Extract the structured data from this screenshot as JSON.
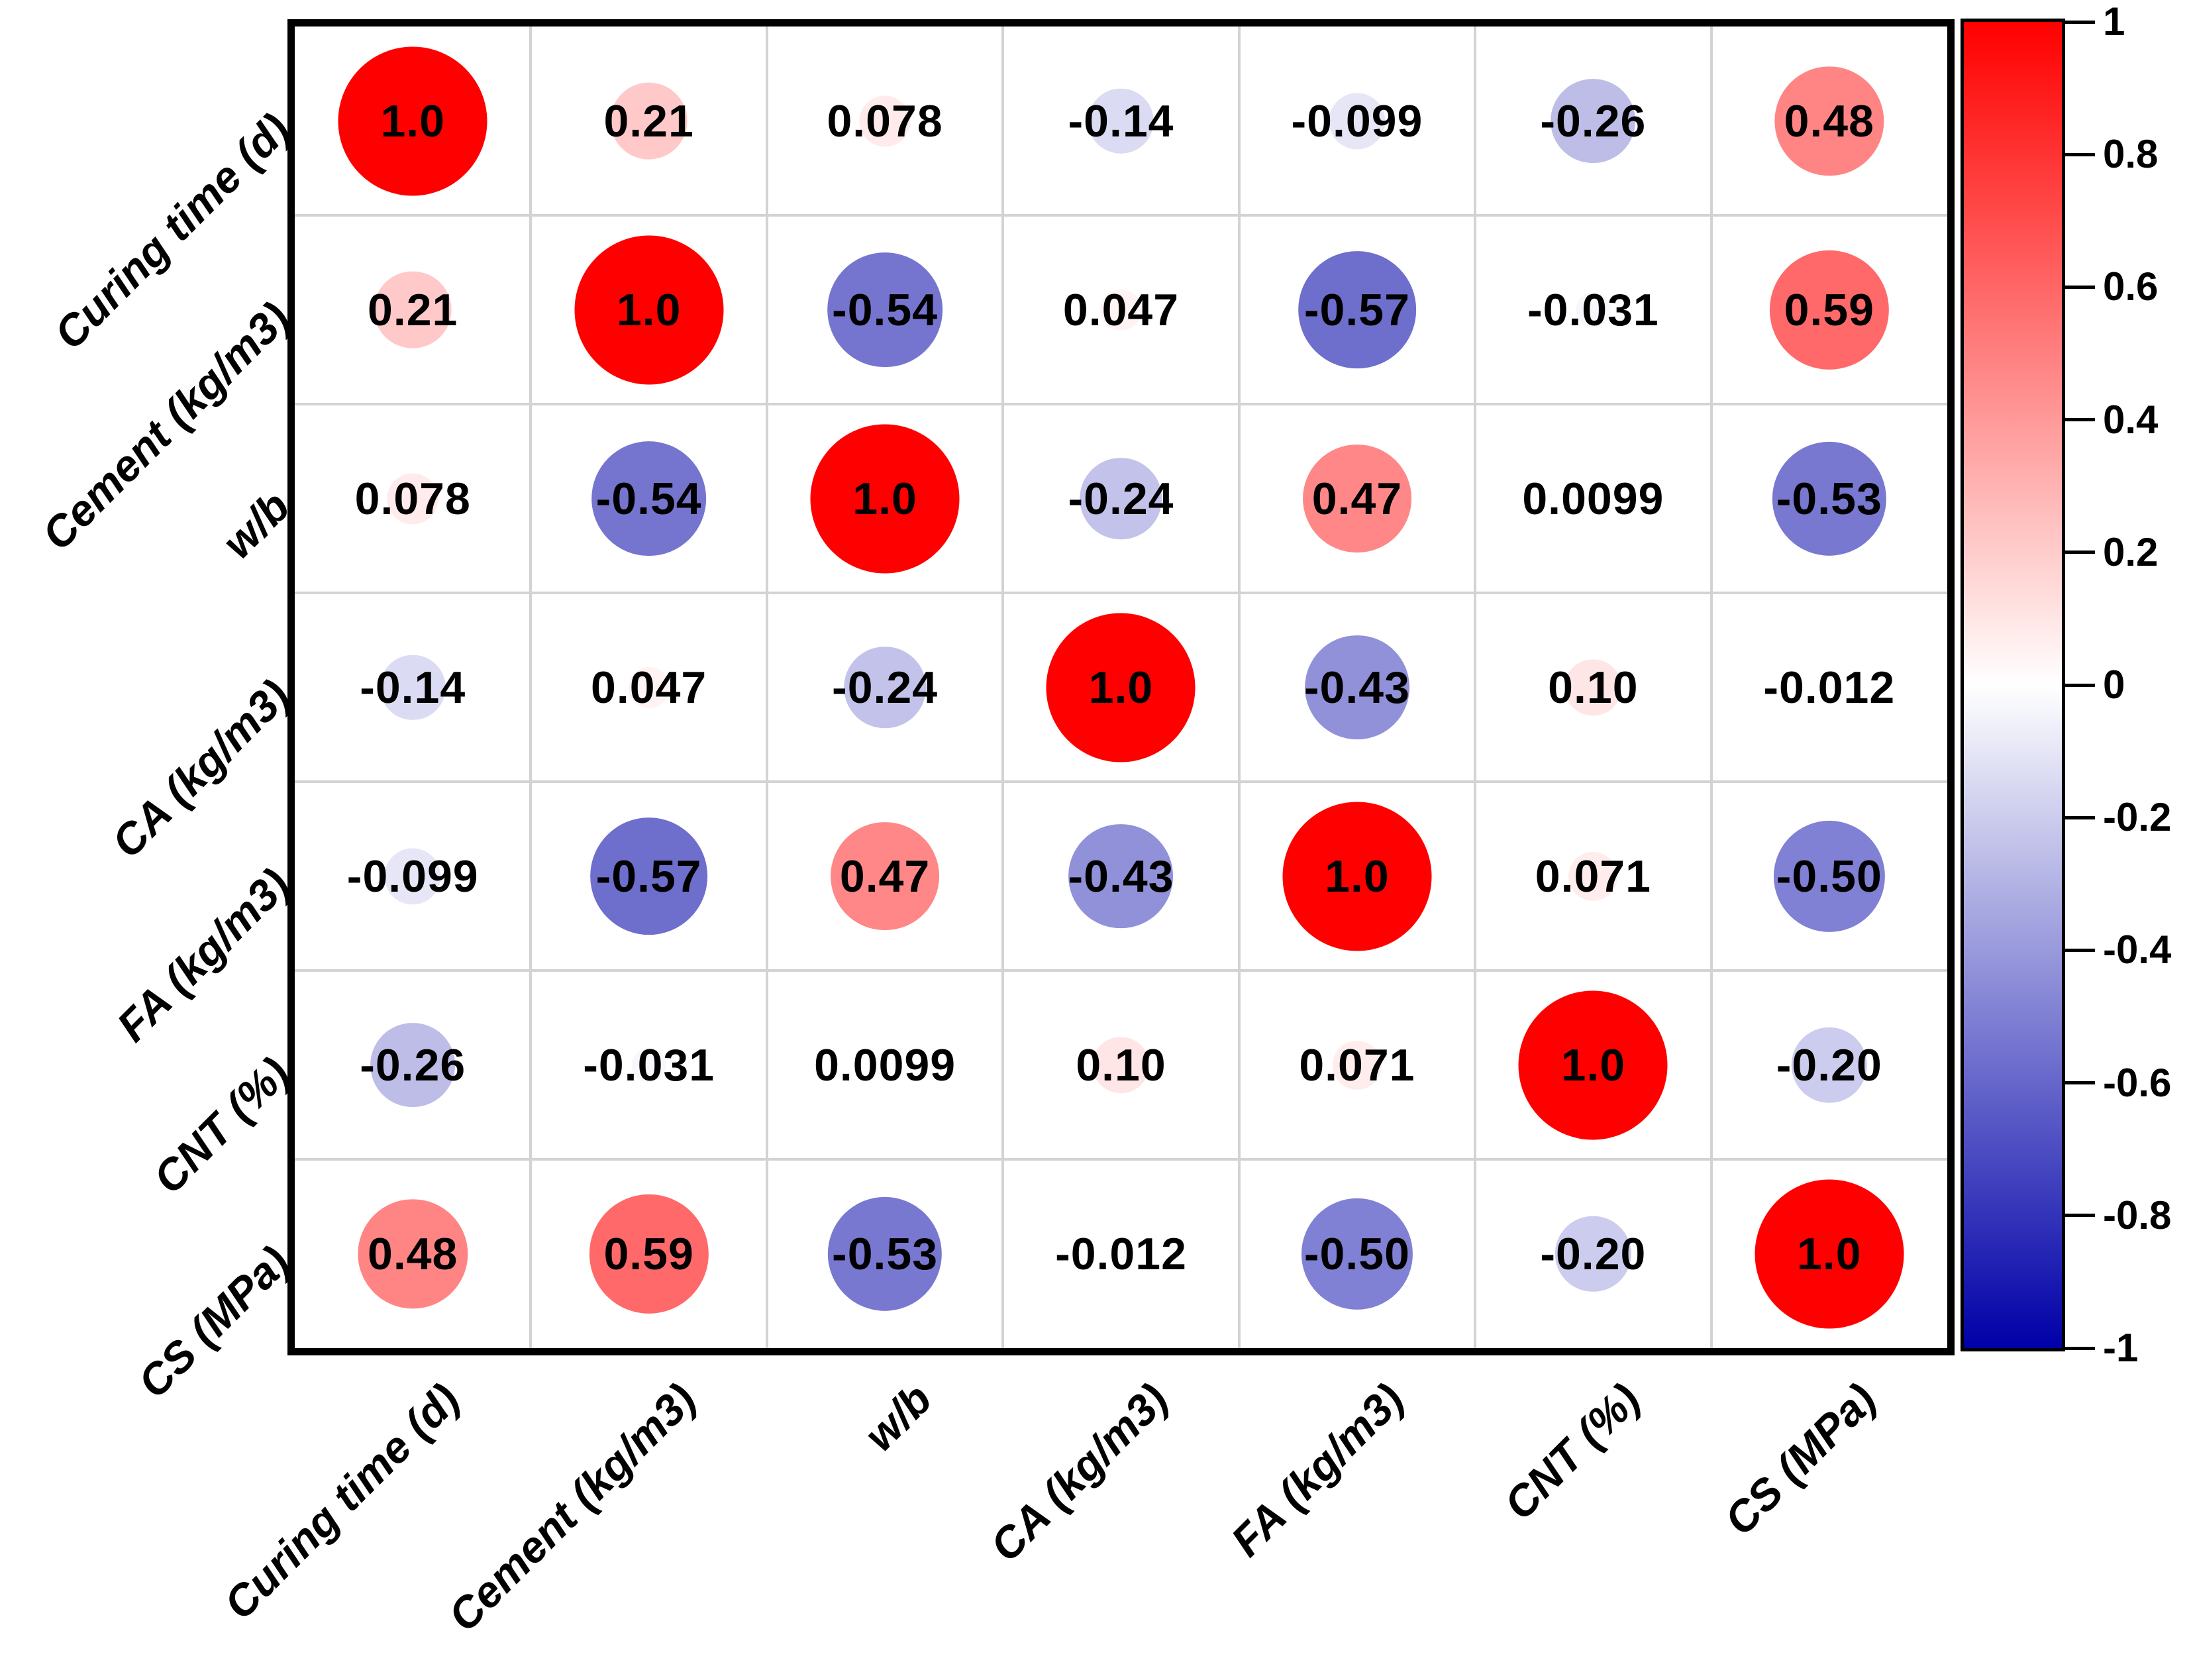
{
  "chart_data": {
    "type": "heatmap",
    "subtype": "correlation-bubble-matrix",
    "title": "",
    "variables": [
      "Curing time (d)",
      "Cement (kg/m3)",
      "w/b",
      "CA (kg/m3)",
      "FA (kg/m3)",
      "CNT (%)",
      "CS (MPa)"
    ],
    "matrix": [
      [
        "1.0",
        "0.21",
        "0.078",
        "-0.14",
        "-0.099",
        "-0.26",
        "0.48"
      ],
      [
        "0.21",
        "1.0",
        "-0.54",
        "0.047",
        "-0.57",
        "-0.031",
        "0.59"
      ],
      [
        "0.078",
        "-0.54",
        "1.0",
        "-0.24",
        "0.47",
        "0.0099",
        "-0.53"
      ],
      [
        "-0.14",
        "0.047",
        "-0.24",
        "1.0",
        "-0.43",
        "0.10",
        "-0.012"
      ],
      [
        "-0.099",
        "-0.57",
        "0.47",
        "-0.43",
        "1.0",
        "0.071",
        "-0.50"
      ],
      [
        "-0.26",
        "-0.031",
        "0.0099",
        "0.10",
        "0.071",
        "1.0",
        "-0.20"
      ],
      [
        "0.48",
        "0.59",
        "-0.53",
        "-0.012",
        "-0.50",
        "-0.20",
        "1.0"
      ]
    ],
    "colorbar": {
      "min": -1,
      "max": 1,
      "tick_labels": [
        "1",
        "0.8",
        "0.6",
        "0.4",
        "0.2",
        "0",
        "-0.2",
        "-0.4",
        "-0.6",
        "-0.8",
        "-1"
      ],
      "tick_values": [
        1,
        0.8,
        0.6,
        0.4,
        0.2,
        0,
        -0.2,
        -0.4,
        -0.6,
        -0.8,
        -1
      ],
      "positive_color": "#ff0000",
      "zero_color": "#ffffff",
      "negative_color": "#0000a8"
    },
    "layout": {
      "grid": "on",
      "grid_color": "#d3d3d3",
      "border_color": "#000000",
      "value_text_color": "#000000",
      "legend_position": "right",
      "x_tick_rotation_deg": 45,
      "y_tick_rotation_deg": 45
    }
  }
}
